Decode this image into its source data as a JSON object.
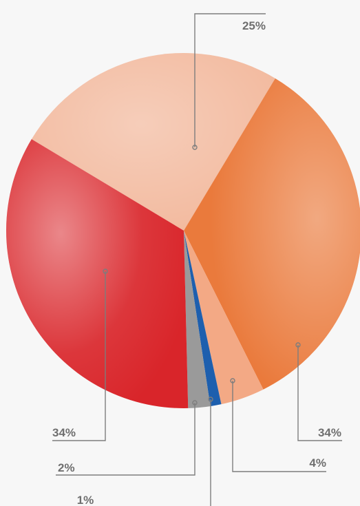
{
  "chart_data": {
    "type": "pie",
    "slices": [
      {
        "value": 25,
        "label": "25%",
        "color": "#f2b89c"
      },
      {
        "value": 34,
        "label": "34%",
        "color": "#ea7a3c"
      },
      {
        "value": 4,
        "label": "4%",
        "color": "#f3a985"
      },
      {
        "value": 1,
        "label": "1%",
        "color": "#1d5fae"
      },
      {
        "value": 2,
        "label": "2%",
        "color": "#9a9a9a"
      },
      {
        "value": 34,
        "label": "34%",
        "color": "#d9252a"
      }
    ],
    "legend": "none"
  }
}
